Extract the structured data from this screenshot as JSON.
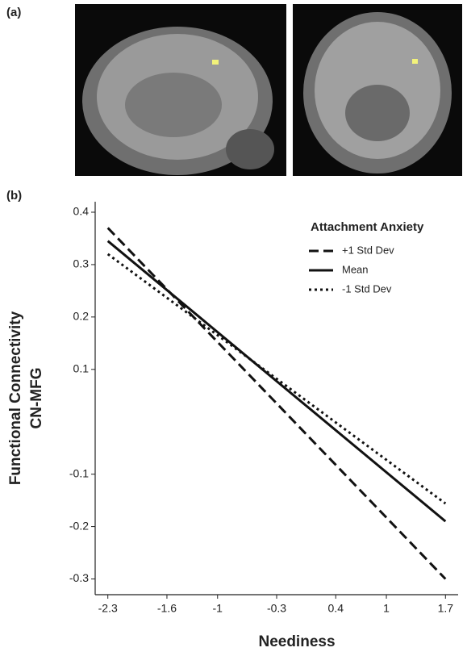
{
  "figure": {
    "panel_a": "(a)",
    "panel_b": "(b)"
  },
  "chart_data": {
    "type": "line",
    "x_label": "Neediness",
    "y_label": [
      "Functional Connectivity",
      "CN-MFG"
    ],
    "legend_title": "Attachment Anxiety",
    "x": [
      -2.3,
      1.7
    ],
    "xlim": [
      -2.45,
      1.85
    ],
    "xticks": [
      -2.3,
      -1.6,
      -1.0,
      -0.3,
      0.4,
      1.0,
      1.7
    ],
    "ylim": [
      -0.33,
      0.42
    ],
    "yticks": [
      0.4,
      0.3,
      0.2,
      0.1,
      -0.1,
      -0.2,
      -0.3
    ],
    "series": [
      {
        "name": "+1 Std Dev",
        "color": "#111111",
        "dash": "12 6",
        "values": [
          0.37,
          -0.3
        ]
      },
      {
        "name": "Mean",
        "color": "#111111",
        "dash": "none",
        "values": [
          0.345,
          -0.19
        ]
      },
      {
        "name": "-1 Std Dev",
        "color": "#111111",
        "dash": "3 4",
        "values": [
          0.32,
          -0.156
        ]
      }
    ]
  }
}
